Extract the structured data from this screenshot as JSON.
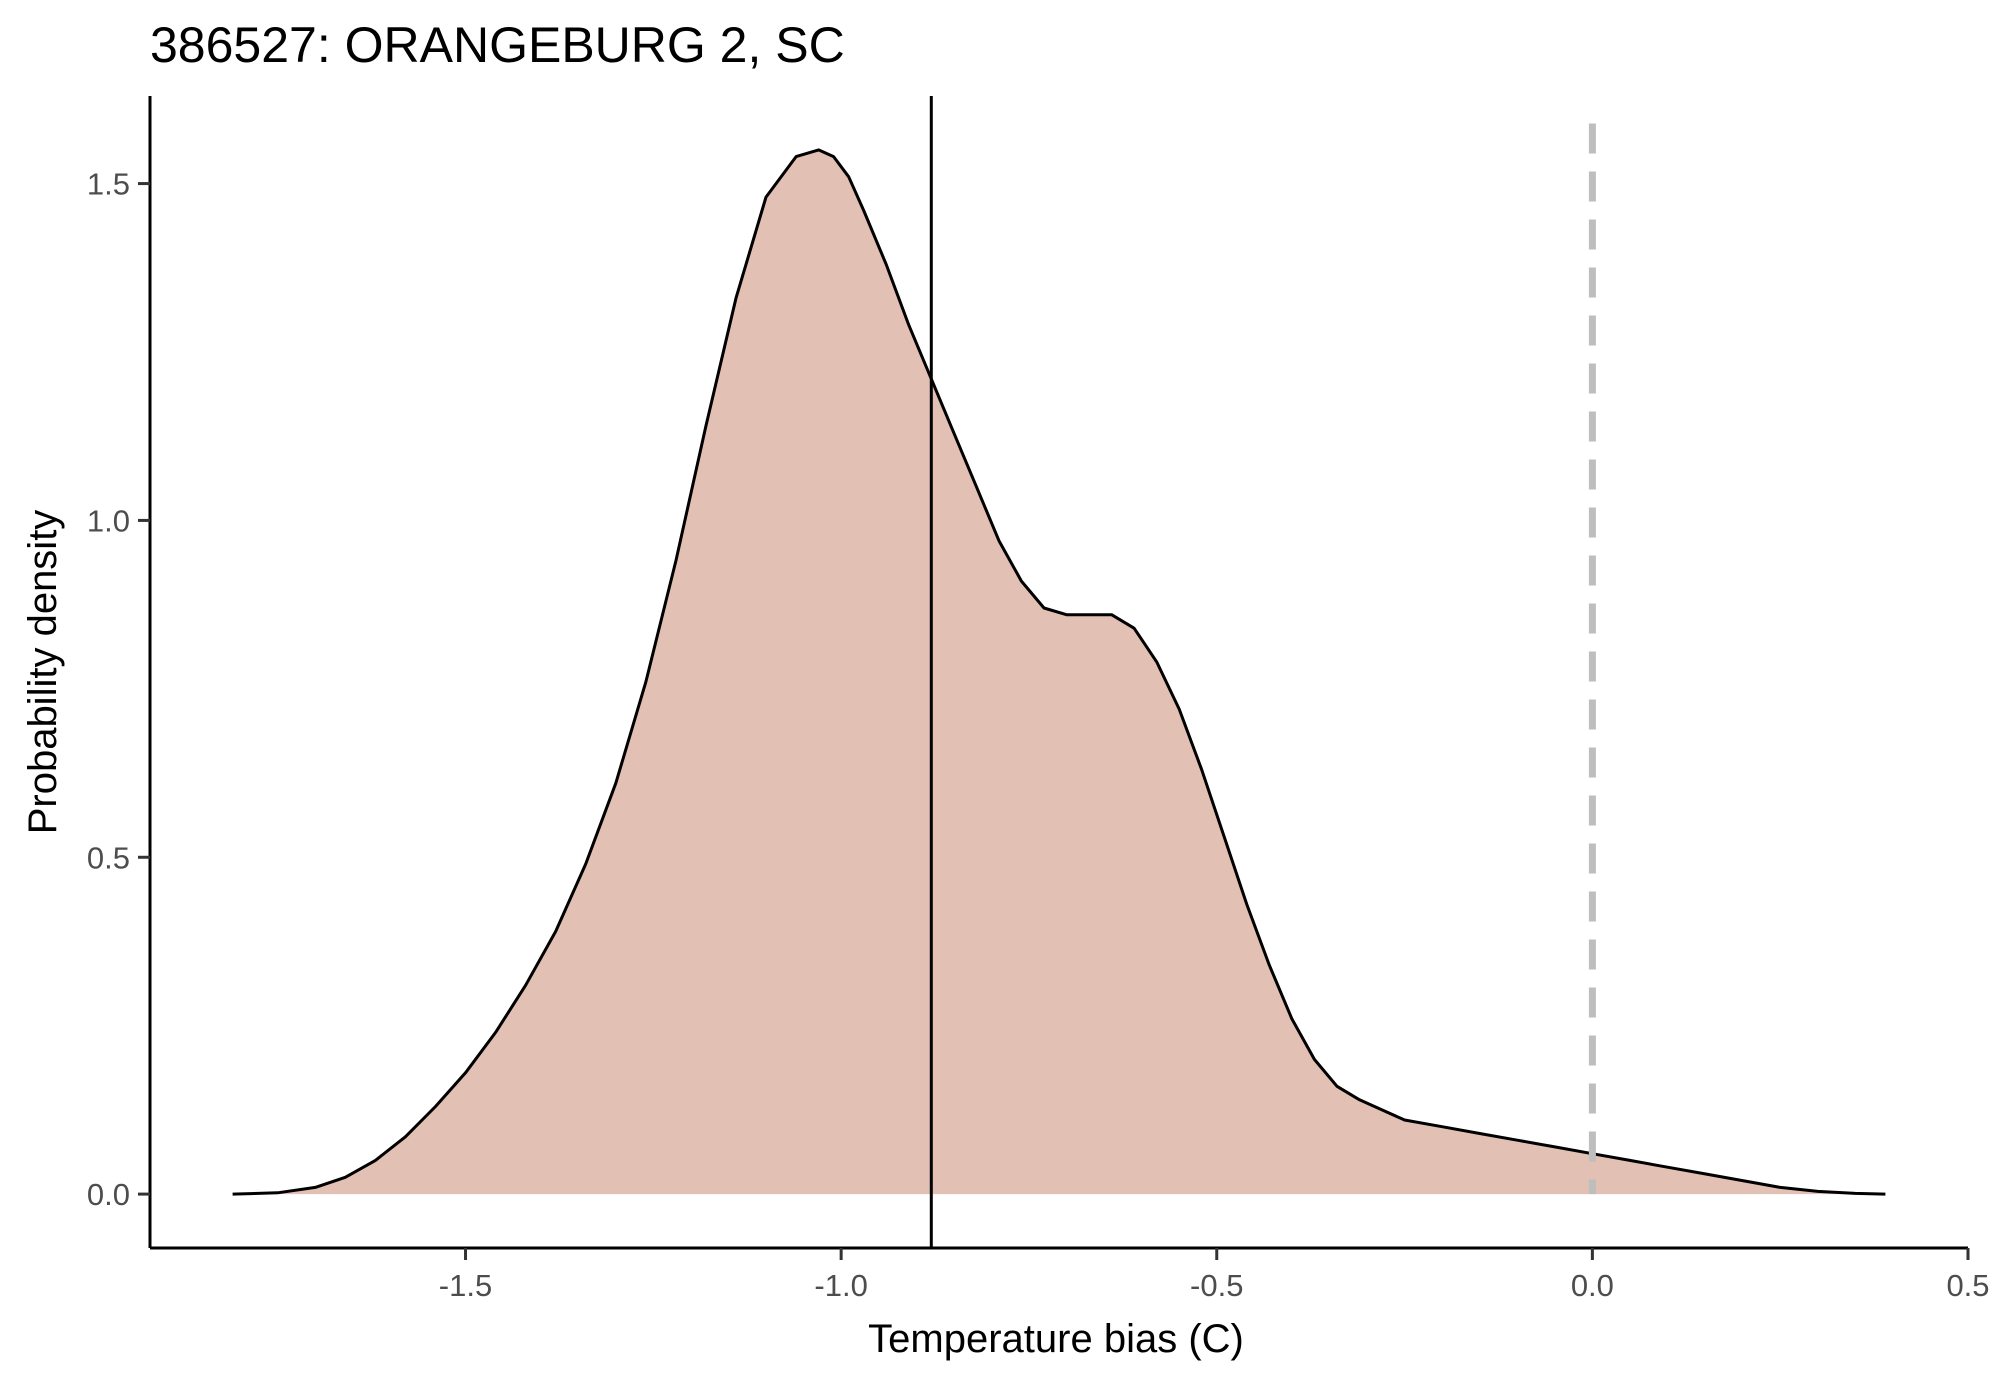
{
  "chart_data": {
    "type": "area",
    "title": "386527: ORANGEBURG 2, SC",
    "xlabel": "Temperature bias (C)",
    "ylabel": "Probability density",
    "xlim": [
      -1.92,
      0.5
    ],
    "ylim": [
      -0.08,
      1.63
    ],
    "x_ticks": [
      -1.5,
      -1.0,
      -0.5,
      0.0,
      0.5
    ],
    "x_tick_labels": [
      "-1.5",
      "-1.0",
      "-0.5",
      "0.0",
      "0.5"
    ],
    "y_ticks": [
      0.0,
      0.5,
      1.0,
      1.5
    ],
    "y_tick_labels": [
      "0.0",
      "0.5",
      "1.0",
      "1.5"
    ],
    "grid": false,
    "fill_color": "#e3c0b4",
    "line_color": "#000000",
    "reference_lines": [
      {
        "x": -0.88,
        "style": "solid",
        "color": "#000000"
      },
      {
        "x": 0.0,
        "style": "dashed",
        "color": "#bebebe"
      }
    ],
    "series": [
      {
        "x": [
          -1.81,
          -1.75,
          -1.7,
          -1.66,
          -1.62,
          -1.58,
          -1.54,
          -1.5,
          -1.46,
          -1.42,
          -1.38,
          -1.34,
          -1.3,
          -1.26,
          -1.22,
          -1.18,
          -1.14,
          -1.1,
          -1.06,
          -1.03,
          -1.01,
          -0.99,
          -0.97,
          -0.94,
          -0.91,
          -0.88,
          -0.85,
          -0.82,
          -0.79,
          -0.76,
          -0.73,
          -0.7,
          -0.67,
          -0.64,
          -0.61,
          -0.58,
          -0.55,
          -0.52,
          -0.49,
          -0.46,
          -0.43,
          -0.4,
          -0.37,
          -0.34,
          -0.31,
          -0.28,
          -0.25,
          -0.2,
          -0.15,
          -0.1,
          -0.05,
          0.0,
          0.05,
          0.1,
          0.15,
          0.2,
          0.25,
          0.3,
          0.35,
          0.39
        ],
        "y": [
          0.0,
          0.002,
          0.01,
          0.025,
          0.05,
          0.085,
          0.13,
          0.18,
          0.24,
          0.31,
          0.39,
          0.49,
          0.61,
          0.76,
          0.94,
          1.14,
          1.33,
          1.48,
          1.54,
          1.55,
          1.54,
          1.51,
          1.46,
          1.38,
          1.29,
          1.21,
          1.13,
          1.05,
          0.97,
          0.91,
          0.87,
          0.86,
          0.86,
          0.86,
          0.84,
          0.79,
          0.72,
          0.63,
          0.53,
          0.43,
          0.34,
          0.26,
          0.2,
          0.16,
          0.14,
          0.125,
          0.11,
          0.1,
          0.09,
          0.08,
          0.07,
          0.06,
          0.05,
          0.04,
          0.03,
          0.02,
          0.01,
          0.004,
          0.001,
          0.0
        ]
      }
    ]
  }
}
